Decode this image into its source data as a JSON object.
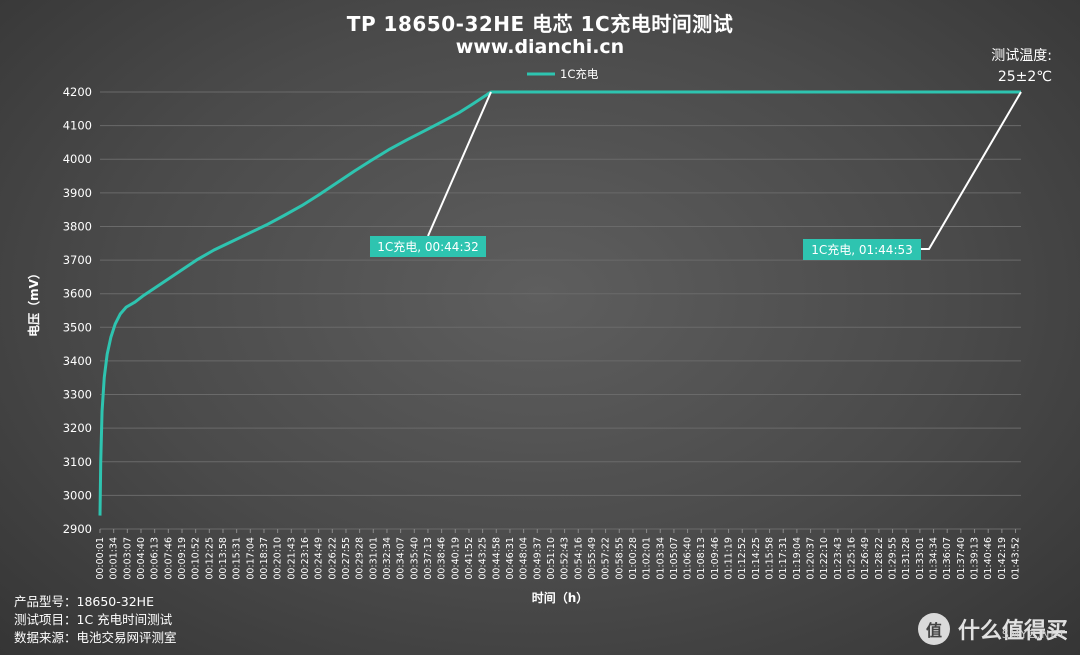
{
  "header": {
    "title": "TP 18650-32HE 电芯 1C充电时间测试",
    "subtitle": "www.dianchi.cn"
  },
  "temperature": {
    "label": "测试温度:",
    "value": "25±2℃"
  },
  "footer": {
    "line1": "产品型号：18650-32HE",
    "line2": "测试项目：1C 充电时间测试",
    "line3": "数据来源：电池交易网评测室"
  },
  "watermark": {
    "logo_char": "值",
    "text": "什么值得买",
    "url": "SMYZ.NET"
  },
  "colors": {
    "series": "#2ec4b0",
    "annotation_bg": "#2ec4b0",
    "leader": "#ffffff",
    "grid": "#6a6a6a"
  },
  "chart_data": {
    "type": "line",
    "title": "TP 18650-32HE 电芯 1C充电时间测试",
    "xlabel": "时间（h）",
    "ylabel": "电压（mV）",
    "ylim": [
      2900,
      4200
    ],
    "yticks": [
      2900,
      3000,
      3100,
      3200,
      3300,
      3400,
      3500,
      3600,
      3700,
      3800,
      3900,
      4000,
      4100,
      4200
    ],
    "xlim": [
      "00:00:01",
      "01:44:53"
    ],
    "grid": true,
    "legend_position": "top-center",
    "x_tick_labels": [
      "00:00:01",
      "00:01:34",
      "00:03:07",
      "00:04:40",
      "00:06:13",
      "00:07:46",
      "00:09:19",
      "00:10:52",
      "00:12:25",
      "00:13:58",
      "00:15:31",
      "00:17:04",
      "00:18:37",
      "00:20:10",
      "00:21:43",
      "00:23:16",
      "00:24:49",
      "00:26:22",
      "00:27:55",
      "00:29:28",
      "00:31:01",
      "00:32:34",
      "00:34:07",
      "00:35:40",
      "00:37:13",
      "00:38:46",
      "00:40:19",
      "00:41:52",
      "00:43:25",
      "00:44:58",
      "00:46:31",
      "00:48:04",
      "00:49:37",
      "00:51:10",
      "00:52:43",
      "00:54:16",
      "00:55:49",
      "00:57:22",
      "00:58:55",
      "01:00:28",
      "01:02:01",
      "01:03:34",
      "01:05:07",
      "01:06:40",
      "01:08:13",
      "01:09:46",
      "01:11:19",
      "01:12:52",
      "01:14:25",
      "01:15:58",
      "01:17:31",
      "01:19:04",
      "01:20:37",
      "01:22:10",
      "01:23:43",
      "01:25:16",
      "01:26:49",
      "01:28:22",
      "01:29:55",
      "01:31:28",
      "01:33:01",
      "01:34:34",
      "01:36:07",
      "01:37:40",
      "01:39:13",
      "01:40:46",
      "01:42:19",
      "01:43:52"
    ],
    "series": [
      {
        "name": "1C充电",
        "points": [
          [
            "00:00:01",
            2940
          ],
          [
            "00:00:06",
            3100
          ],
          [
            "00:00:15",
            3250
          ],
          [
            "00:00:30",
            3350
          ],
          [
            "00:00:50",
            3420
          ],
          [
            "00:01:15",
            3470
          ],
          [
            "00:01:45",
            3510
          ],
          [
            "00:02:20",
            3540
          ],
          [
            "00:03:00",
            3560
          ],
          [
            "00:04:00",
            3575
          ],
          [
            "00:05:00",
            3595
          ],
          [
            "00:07:00",
            3630
          ],
          [
            "00:09:00",
            3665
          ],
          [
            "00:11:00",
            3700
          ],
          [
            "00:13:00",
            3730
          ],
          [
            "00:15:00",
            3755
          ],
          [
            "00:17:00",
            3780
          ],
          [
            "00:19:00",
            3805
          ],
          [
            "00:21:00",
            3833
          ],
          [
            "00:23:00",
            3862
          ],
          [
            "00:25:00",
            3895
          ],
          [
            "00:27:00",
            3930
          ],
          [
            "00:29:00",
            3965
          ],
          [
            "00:31:00",
            3998
          ],
          [
            "00:33:00",
            4030
          ],
          [
            "00:35:00",
            4058
          ],
          [
            "00:37:00",
            4085
          ],
          [
            "00:39:00",
            4112
          ],
          [
            "00:41:00",
            4140
          ],
          [
            "00:42:30",
            4165
          ],
          [
            "00:43:40",
            4185
          ],
          [
            "00:44:32",
            4200
          ],
          [
            "01:44:53",
            4200
          ]
        ]
      }
    ],
    "annotations": [
      {
        "text": "1C充电, 00:44:32",
        "point": [
          "00:44:32",
          4200
        ]
      },
      {
        "text": "1C充电, 01:44:53",
        "point": [
          "01:44:53",
          4200
        ]
      }
    ]
  }
}
